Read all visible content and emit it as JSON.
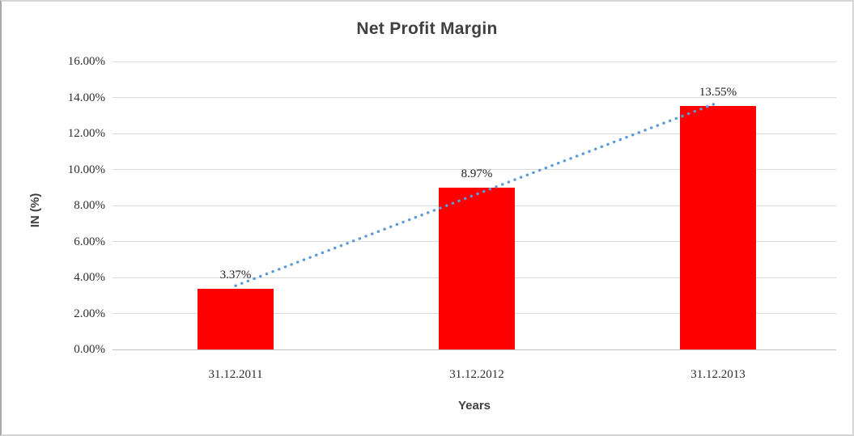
{
  "chart_data": {
    "type": "bar",
    "title": "Net Profit Margin",
    "xlabel": "Years",
    "ylabel": "IN (%)",
    "categories": [
      "31.12.2011",
      "31.12.2012",
      "31.12.2013"
    ],
    "values": [
      3.37,
      8.97,
      13.55
    ],
    "data_labels": [
      "3.37%",
      "8.97%",
      "13.55%"
    ],
    "ylim": [
      0,
      16
    ],
    "y_tick_step": 2,
    "y_tick_labels": [
      "0.00%",
      "2.00%",
      "4.00%",
      "6.00%",
      "8.00%",
      "10.00%",
      "12.00%",
      "14.00%",
      "16.00%"
    ],
    "grid": true,
    "legend": "none",
    "trendline": {
      "type": "linear",
      "style": "dotted"
    }
  },
  "colors": {
    "bar": "#ff0000",
    "trendline": "#5b9bd5",
    "gridline": "#d9d9d9",
    "axis_line": "#bfbfbf",
    "title_text": "#404040",
    "tick_text": "#2e2e2e"
  }
}
